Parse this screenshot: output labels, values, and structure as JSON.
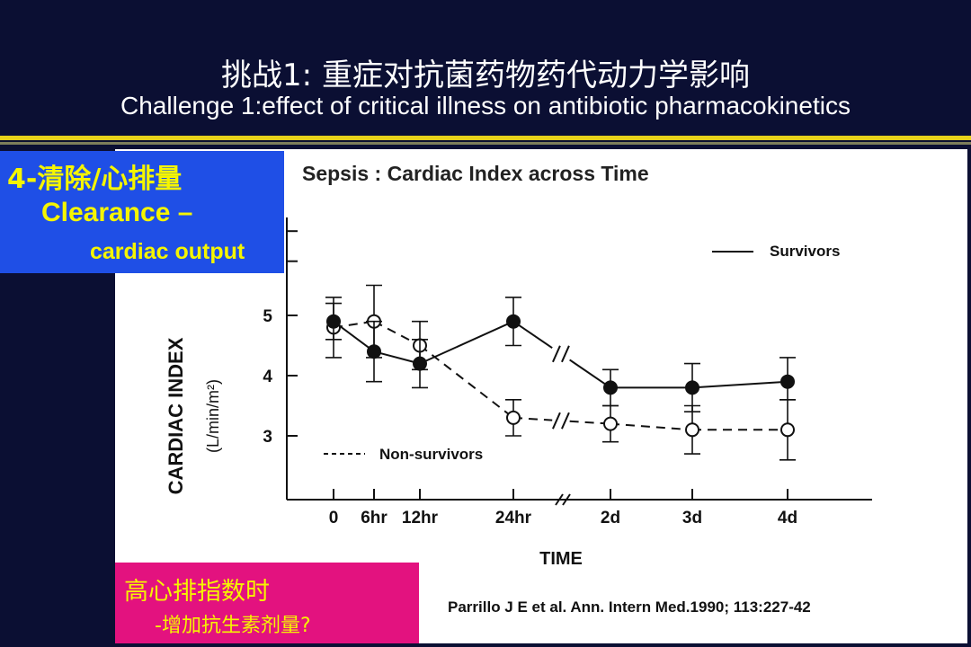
{
  "slide": {
    "title_zh": "挑战1: 重症对抗菌药物药代动力学影响",
    "title_en": "Challenge 1:effect of critical illness on antibiotic pharmacokinetics"
  },
  "callout_blue": {
    "line1": "4-清除/心排量",
    "line2": "Clearance –",
    "line3": "cardiac output"
  },
  "callout_pink": {
    "line1": "高心排指数时",
    "line2": "-增加抗生素剂量?"
  },
  "citation": "Parrillo J E et al.  Ann. Intern Med.1990; 113:227-42",
  "colors": {
    "background": "#0b0f33",
    "accent_yellow": "#e8d21a",
    "callout_blue": "#1f4fe6",
    "callout_pink": "#e3127f",
    "callout_text": "#f5f500"
  },
  "chart_data": {
    "type": "line",
    "title": "Sepsis :  Cardiac Index across Time",
    "xlabel": "TIME",
    "ylabel": "CARDIAC INDEX",
    "ylabel_unit": "(L/min/m²)",
    "categories": [
      "0",
      "6hr",
      "12hr",
      "24hr",
      "2d",
      "3d",
      "4d"
    ],
    "yticks": [
      3,
      4,
      5
    ],
    "ylim": [
      2.0,
      6.4
    ],
    "axis_breaks": "between 24hr and 2d",
    "grid": false,
    "legend_position": "inside plot (Survivors top-right, Non-survivors lower-left)",
    "series": [
      {
        "name": "Survivors",
        "style": "solid line, filled circles",
        "values": [
          4.9,
          4.4,
          4.2,
          4.9,
          3.8,
          3.8,
          3.9
        ],
        "error_low": [
          4.6,
          3.9,
          3.8,
          4.5,
          3.5,
          3.4,
          3.6
        ],
        "error_high": [
          5.2,
          4.9,
          4.6,
          5.3,
          4.1,
          4.2,
          4.3
        ]
      },
      {
        "name": "Non-survivors",
        "style": "dashed line, open circles",
        "values": [
          4.8,
          4.9,
          4.5,
          3.3,
          3.2,
          3.1,
          3.1
        ],
        "error_low": [
          4.3,
          4.3,
          4.1,
          3.0,
          2.9,
          2.7,
          2.6
        ],
        "error_high": [
          5.3,
          5.5,
          4.9,
          3.6,
          3.5,
          3.5,
          3.6
        ]
      }
    ]
  }
}
